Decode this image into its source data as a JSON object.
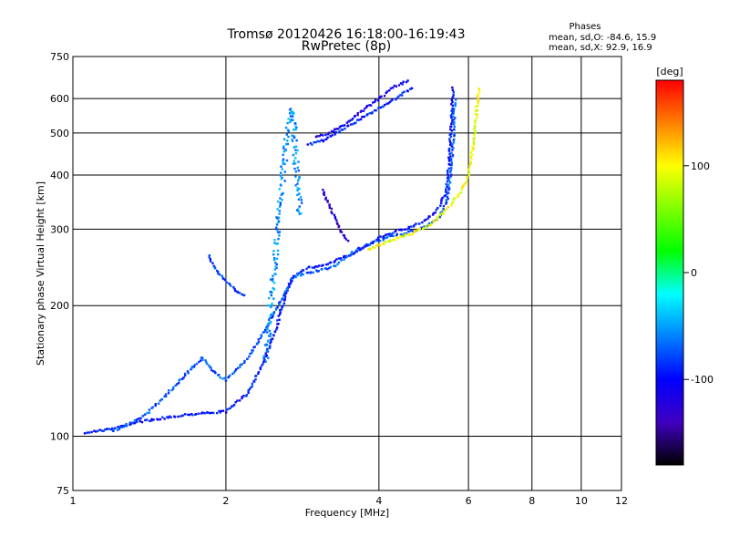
{
  "chart_data": {
    "type": "scatter",
    "title": "Tromsø 20120426 16:18:00-16:19:43",
    "subtitle": "RwPretec (8p)",
    "xlabel": "Frequency [MHz]",
    "ylabel": "Stationary phase Virtual Height [km]",
    "x_scale": "log",
    "y_scale": "log",
    "xlim": [
      1,
      12
    ],
    "ylim": [
      75,
      750
    ],
    "x_ticks": [
      1,
      2,
      4,
      6,
      8,
      10,
      12
    ],
    "x_tick_labels": [
      "1",
      "2",
      "4",
      "6",
      "8",
      "10",
      "12"
    ],
    "x_grid": [
      2,
      4,
      6,
      8,
      10
    ],
    "y_ticks": [
      75,
      100,
      200,
      300,
      400,
      500,
      600,
      750
    ],
    "y_tick_labels": [
      "75",
      "100",
      "200",
      "300",
      "400",
      "500",
      "600",
      "750"
    ],
    "y_grid": [
      100,
      200,
      300,
      400,
      500,
      600
    ],
    "grid": true,
    "phase_stats": {
      "title": "Phases",
      "line1": "mean, sd,O: -84.6, 15.9",
      "line2": "mean, sd,X:  92.9, 16.9"
    },
    "colorbar": {
      "label": "[deg]",
      "range": [
        -180,
        180
      ],
      "ticks": [
        100,
        0,
        -100
      ],
      "tick_labels": [
        "100",
        "0",
        "-100"
      ],
      "colors": [
        "#ff0000",
        "#ff8000",
        "#ffff00",
        "#80ff00",
        "#00ff00",
        "#00ffff",
        "#0080ff",
        "#0000ff",
        "#4000c0",
        "#000000"
      ]
    },
    "series": [
      {
        "phase": -95,
        "x": [
          1.06,
          1.2,
          1.35,
          1.5,
          1.65,
          1.8,
          2.0,
          2.2,
          2.35,
          2.5,
          2.6,
          2.7,
          2.8,
          2.9,
          3.0,
          3.2,
          3.4,
          3.6,
          3.8,
          4.0,
          4.3,
          4.6,
          4.9,
          5.2,
          5.4,
          5.5,
          5.55,
          5.6
        ],
        "y": [
          102,
          104,
          108,
          110,
          112,
          113,
          114,
          125,
          145,
          175,
          205,
          232,
          240,
          244,
          246,
          250,
          258,
          266,
          276,
          286,
          296,
          303,
          313,
          331,
          360,
          420,
          520,
          640
        ]
      },
      {
        "phase": -75,
        "x": [
          1.2,
          1.3,
          1.4,
          1.5,
          1.6,
          1.7,
          1.8,
          1.9,
          2.0,
          2.2,
          2.4,
          2.6,
          2.7,
          2.8,
          2.9,
          3.0,
          3.1,
          3.2,
          3.3,
          3.4,
          3.6,
          3.8,
          4.0,
          4.2,
          4.4,
          4.6,
          4.8,
          5.0,
          5.2,
          5.35,
          5.45,
          5.5,
          5.55,
          5.6,
          5.62,
          5.65
        ],
        "y": [
          103,
          107,
          113,
          122,
          132,
          142,
          152,
          140,
          135,
          150,
          178,
          212,
          230,
          235,
          238,
          240,
          242,
          244,
          248,
          256,
          268,
          276,
          282,
          288,
          292,
          296,
          300,
          306,
          316,
          332,
          350,
          380,
          420,
          480,
          540,
          600
        ]
      },
      {
        "phase": -90,
        "x": [
          2.9,
          3.1,
          3.3,
          3.6,
          3.9,
          4.2,
          4.5,
          4.7
        ],
        "y": [
          470,
          480,
          500,
          530,
          560,
          590,
          620,
          640
        ]
      },
      {
        "phase": -110,
        "x": [
          3.0,
          3.2,
          3.4,
          3.7,
          4.0,
          4.3,
          4.6
        ],
        "y": [
          490,
          500,
          520,
          560,
          600,
          640,
          660
        ]
      },
      {
        "phase": -130,
        "x": [
          3.1,
          3.2,
          3.3,
          3.4,
          3.5
        ],
        "y": [
          370,
          340,
          310,
          292,
          280
        ]
      },
      {
        "phase": -85,
        "x": [
          1.85,
          1.9,
          1.95,
          2.0,
          2.05,
          2.1,
          2.2
        ],
        "y": [
          260,
          245,
          235,
          228,
          222,
          215,
          210
        ]
      },
      {
        "phase": -55,
        "x": [
          2.4,
          2.45,
          2.5,
          2.55,
          2.6,
          2.65,
          2.7,
          2.75,
          2.8
        ],
        "y": [
          150,
          200,
          260,
          330,
          420,
          520,
          570,
          430,
          320
        ]
      },
      {
        "phase": 95,
        "x": [
          3.8,
          4.0,
          4.3,
          4.6,
          5.0,
          5.4,
          5.8,
          6.0,
          6.1,
          6.2,
          6.25,
          6.3
        ],
        "y": [
          268,
          275,
          285,
          292,
          305,
          330,
          365,
          400,
          450,
          520,
          590,
          640
        ]
      }
    ]
  }
}
